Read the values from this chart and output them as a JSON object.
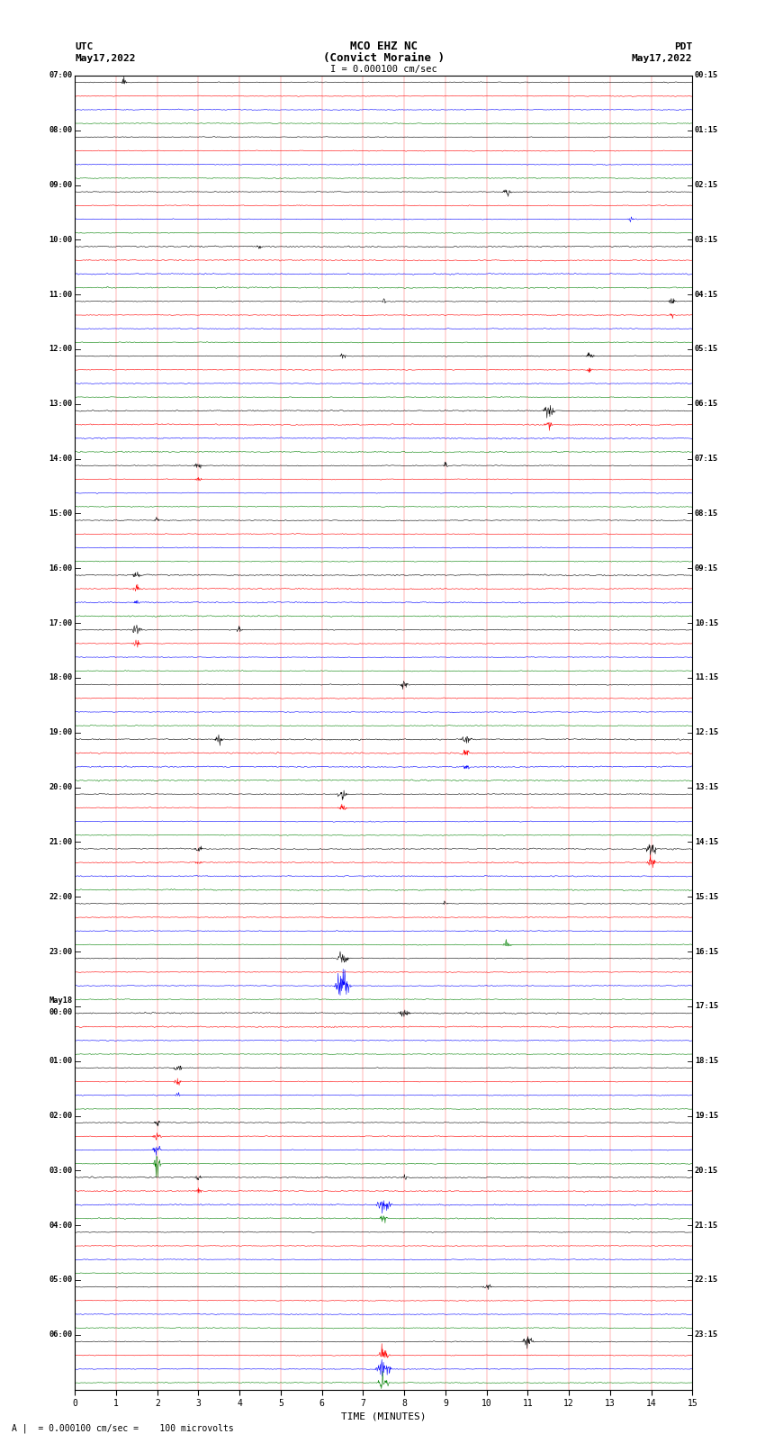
{
  "title_line1": "MCO EHZ NC",
  "title_line2": "(Convict Moraine )",
  "title_line3": "I = 0.000100 cm/sec",
  "left_header_line1": "UTC",
  "left_header_line2": "May17,2022",
  "right_header_line1": "PDT",
  "right_header_line2": "May17,2022",
  "xlabel": "TIME (MINUTES)",
  "footer": "A |  = 0.000100 cm/sec =    100 microvolts",
  "colors": [
    "black",
    "red",
    "blue",
    "green"
  ],
  "background": "white",
  "utc_labels": [
    "07:00",
    "",
    "",
    "",
    "08:00",
    "",
    "",
    "",
    "09:00",
    "",
    "",
    "",
    "10:00",
    "",
    "",
    "",
    "11:00",
    "",
    "",
    "",
    "12:00",
    "",
    "",
    "",
    "13:00",
    "",
    "",
    "",
    "14:00",
    "",
    "",
    "",
    "15:00",
    "",
    "",
    "",
    "16:00",
    "",
    "",
    "",
    "17:00",
    "",
    "",
    "",
    "18:00",
    "",
    "",
    "",
    "19:00",
    "",
    "",
    "",
    "20:00",
    "",
    "",
    "",
    "21:00",
    "",
    "",
    "",
    "22:00",
    "",
    "",
    "",
    "23:00",
    "",
    "",
    "",
    "May18\n00:00",
    "",
    "",
    "",
    "01:00",
    "",
    "",
    "",
    "02:00",
    "",
    "",
    "",
    "03:00",
    "",
    "",
    "",
    "04:00",
    "",
    "",
    "",
    "05:00",
    "",
    "",
    "",
    "06:00",
    "",
    "",
    ""
  ],
  "pdt_labels": [
    "00:15",
    "",
    "",
    "",
    "01:15",
    "",
    "",
    "",
    "02:15",
    "",
    "",
    "",
    "03:15",
    "",
    "",
    "",
    "04:15",
    "",
    "",
    "",
    "05:15",
    "",
    "",
    "",
    "06:15",
    "",
    "",
    "",
    "07:15",
    "",
    "",
    "",
    "08:15",
    "",
    "",
    "",
    "09:15",
    "",
    "",
    "",
    "10:15",
    "",
    "",
    "",
    "11:15",
    "",
    "",
    "",
    "12:15",
    "",
    "",
    "",
    "13:15",
    "",
    "",
    "",
    "14:15",
    "",
    "",
    "",
    "15:15",
    "",
    "",
    "",
    "16:15",
    "",
    "",
    "",
    "17:15",
    "",
    "",
    "",
    "18:15",
    "",
    "",
    "",
    "19:15",
    "",
    "",
    "",
    "20:15",
    "",
    "",
    "",
    "21:15",
    "",
    "",
    "",
    "22:15",
    "",
    "",
    "",
    "23:15",
    "",
    "",
    ""
  ],
  "n_rows": 96,
  "samples_per_row": 1500,
  "xlim": [
    0,
    15
  ],
  "xticks": [
    0,
    1,
    2,
    3,
    4,
    5,
    6,
    7,
    8,
    9,
    10,
    11,
    12,
    13,
    14,
    15
  ]
}
